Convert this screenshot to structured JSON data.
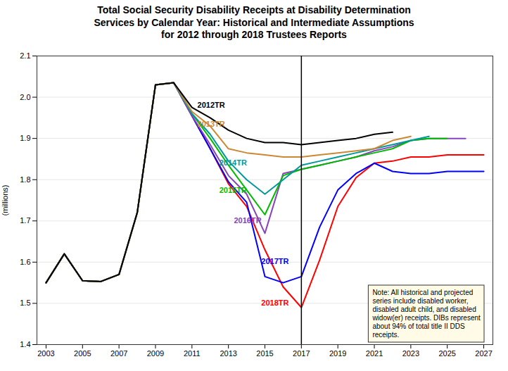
{
  "chart_data": {
    "type": "line",
    "title": "Total Social Security Disability Receipts at Disability Determination\nServices by Calendar Year: Historical and Intermediate Assumptions\nfor 2012 through 2018 Trustees Reports",
    "ylabel": "(millions)",
    "xlim": [
      2002.5,
      2027.5
    ],
    "ylim": [
      1.4,
      2.1
    ],
    "xticks": [
      2003,
      2005,
      2007,
      2009,
      2011,
      2013,
      2015,
      2017,
      2019,
      2021,
      2023,
      2025,
      2027
    ],
    "yticks": [
      1.4,
      1.5,
      1.6,
      1.7,
      1.8,
      1.9,
      {
        "value": 2.0,
        "label": "2.0"
      },
      2.1
    ],
    "grid": "y",
    "vlines": [
      2017
    ],
    "series": [
      {
        "name": "2018TR",
        "color": "#FF0000",
        "x": [
          2003,
          2004,
          2005,
          2006,
          2007,
          2008,
          2009,
          2010,
          2011,
          2012,
          2013,
          2014,
          2015,
          2016,
          2017,
          2018,
          2019,
          2020,
          2021,
          2022,
          2023,
          2024,
          2025,
          2026,
          2027
        ],
        "values": [
          1.55,
          1.62,
          1.555,
          1.553,
          1.57,
          1.72,
          2.03,
          2.035,
          1.955,
          1.875,
          1.79,
          1.735,
          1.63,
          1.54,
          1.49,
          1.605,
          1.735,
          1.805,
          1.84,
          1.845,
          1.855,
          1.855,
          1.86,
          1.86,
          1.86
        ]
      },
      {
        "name": "2017TR",
        "color": "#0000FF",
        "x": [
          2003,
          2004,
          2005,
          2006,
          2007,
          2008,
          2009,
          2010,
          2011,
          2012,
          2013,
          2014,
          2015,
          2016,
          2017,
          2018,
          2019,
          2020,
          2021,
          2022,
          2023,
          2024,
          2025,
          2026,
          2027
        ],
        "values": [
          1.55,
          1.62,
          1.555,
          1.553,
          1.57,
          1.72,
          2.03,
          2.035,
          1.955,
          1.875,
          1.795,
          1.745,
          1.565,
          1.55,
          1.565,
          1.685,
          1.775,
          1.815,
          1.84,
          1.82,
          1.815,
          1.815,
          1.82,
          1.82,
          1.82
        ]
      },
      {
        "name": "2016TR",
        "color": "#8844BB",
        "x": [
          2003,
          2004,
          2005,
          2006,
          2007,
          2008,
          2009,
          2010,
          2011,
          2012,
          2013,
          2014,
          2015,
          2016,
          2017,
          2018,
          2019,
          2020,
          2021,
          2022,
          2023,
          2024,
          2025,
          2026
        ],
        "values": [
          1.55,
          1.62,
          1.555,
          1.553,
          1.57,
          1.72,
          2.03,
          2.035,
          1.955,
          1.885,
          1.81,
          1.765,
          1.67,
          1.815,
          1.825,
          1.835,
          1.845,
          1.855,
          1.87,
          1.88,
          1.895,
          1.9,
          1.9,
          1.9
        ]
      },
      {
        "name": "2015TR",
        "color": "#00BB00",
        "x": [
          2003,
          2004,
          2005,
          2006,
          2007,
          2008,
          2009,
          2010,
          2011,
          2012,
          2013,
          2014,
          2015,
          2016,
          2017,
          2018,
          2019,
          2020,
          2021,
          2022,
          2023,
          2024,
          2025
        ],
        "values": [
          1.55,
          1.62,
          1.555,
          1.553,
          1.57,
          1.72,
          2.03,
          2.035,
          1.96,
          1.9,
          1.835,
          1.775,
          1.715,
          1.81,
          1.825,
          1.835,
          1.845,
          1.855,
          1.865,
          1.875,
          1.895,
          1.9,
          1.9
        ]
      },
      {
        "name": "2014TR",
        "color": "#009999",
        "x": [
          2003,
          2004,
          2005,
          2006,
          2007,
          2008,
          2009,
          2010,
          2011,
          2012,
          2013,
          2014,
          2015,
          2016,
          2017,
          2018,
          2019,
          2020,
          2021,
          2022,
          2023,
          2024
        ],
        "values": [
          1.55,
          1.62,
          1.555,
          1.553,
          1.57,
          1.72,
          2.03,
          2.035,
          1.96,
          1.91,
          1.845,
          1.8,
          1.765,
          1.8,
          1.835,
          1.845,
          1.855,
          1.865,
          1.875,
          1.885,
          1.895,
          1.905
        ]
      },
      {
        "name": "2013TR",
        "color": "#CC8833",
        "x": [
          2003,
          2004,
          2005,
          2006,
          2007,
          2008,
          2009,
          2010,
          2011,
          2012,
          2013,
          2014,
          2015,
          2016,
          2017,
          2018,
          2019,
          2020,
          2021,
          2022,
          2023
        ],
        "values": [
          1.55,
          1.62,
          1.555,
          1.553,
          1.57,
          1.72,
          2.03,
          2.035,
          1.965,
          1.93,
          1.875,
          1.865,
          1.86,
          1.855,
          1.855,
          1.86,
          1.865,
          1.87,
          1.875,
          1.895,
          1.905
        ]
      },
      {
        "name": "2012TR",
        "color": "#000000",
        "x": [
          2003,
          2004,
          2005,
          2006,
          2007,
          2008,
          2009,
          2010,
          2011,
          2012,
          2013,
          2014,
          2015,
          2016,
          2017,
          2018,
          2019,
          2020,
          2021,
          2022
        ],
        "values": [
          1.55,
          1.62,
          1.555,
          1.553,
          1.57,
          1.72,
          2.03,
          2.035,
          1.975,
          1.95,
          1.92,
          1.9,
          1.89,
          1.89,
          1.885,
          1.89,
          1.895,
          1.9,
          1.91,
          1.915
        ]
      }
    ],
    "annotations": [
      {
        "text": "2012TR",
        "x": 2011.3,
        "y": 1.975,
        "color": "#000000"
      },
      {
        "text": "2013TR",
        "x": 2011.3,
        "y": 1.928,
        "color": "#CC8833"
      },
      {
        "text": "2014TR",
        "x": 2012.5,
        "y": 1.835,
        "color": "#009999"
      },
      {
        "text": "2015TR",
        "x": 2012.5,
        "y": 1.768,
        "color": "#00BB00"
      },
      {
        "text": "2016TR",
        "x": 2013.3,
        "y": 1.695,
        "color": "#8844BB"
      },
      {
        "text": "2017TR",
        "x": 2014.8,
        "y": 1.595,
        "color": "#0000FF"
      },
      {
        "text": "2018TR",
        "x": 2014.8,
        "y": 1.495,
        "color": "#FF0000"
      },
      {
        "text": "Note: All historical and projected\nseries include disabled worker,\ndisabled adult child, and disabled\nwidow(er) receipts. DIBs represent\nabout 94% of total title II DDS\nreceipts."
      }
    ]
  }
}
